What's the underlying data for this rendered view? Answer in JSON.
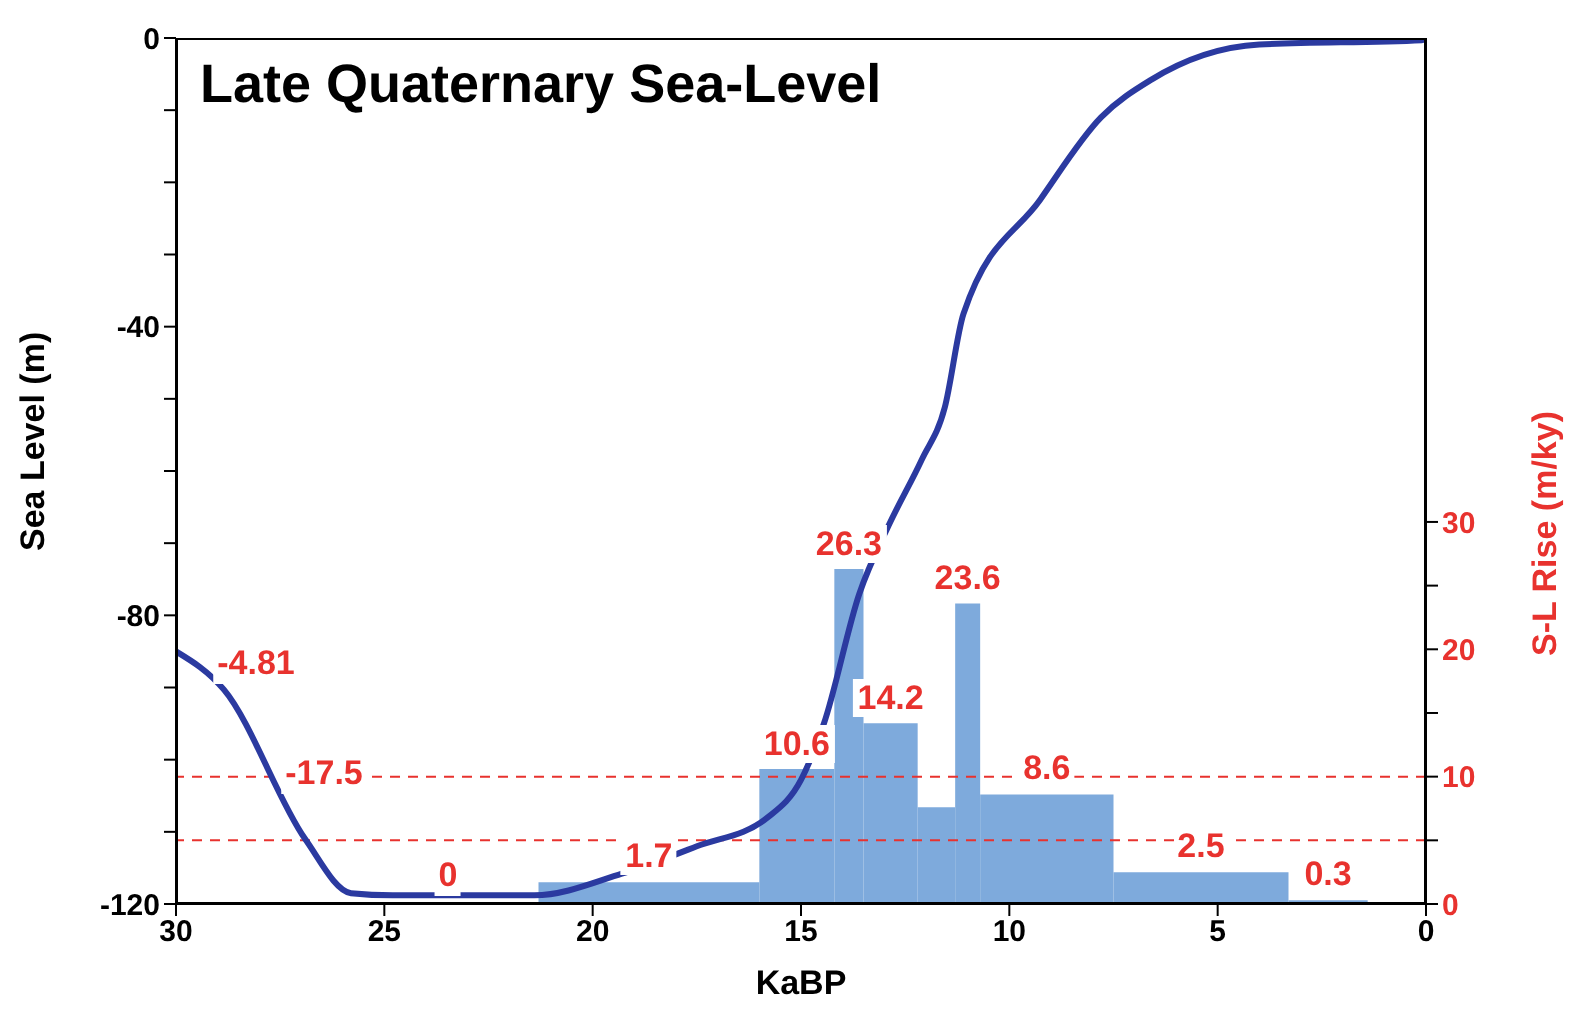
{
  "chart_data": {
    "type": "histogram",
    "title": "Late Quaternary Sea-Level",
    "xlabel": "KaBP",
    "ylabel": "Sea Level (m)",
    "y2label": "S-L Rise (m/ky)",
    "xlim": [
      30,
      0
    ],
    "xticks": [
      30,
      25,
      20,
      15,
      10,
      5,
      0
    ],
    "ylim": [
      -120,
      0
    ],
    "yticks": [
      -120,
      {
        "value": -110,
        "label": null
      },
      {
        "value": -100,
        "label": null
      },
      {
        "value": -90,
        "label": null
      },
      -80,
      {
        "value": -70,
        "label": null
      },
      {
        "value": -60,
        "label": null
      },
      {
        "value": -50,
        "label": null
      },
      -40,
      {
        "value": -30,
        "label": null
      },
      {
        "value": -20,
        "label": null
      },
      {
        "value": -10,
        "label": null
      },
      0
    ],
    "y2lim": [
      0,
      68
    ],
    "y2ticks": [
      0,
      {
        "value": 5,
        "label": null
      },
      10,
      {
        "value": 15,
        "label": null
      },
      20,
      {
        "value": 25,
        "label": null
      },
      30
    ],
    "series": [
      {
        "axis": "y2",
        "color": "#7eaadc",
        "bins": [
          21.3,
          16,
          14.2,
          13.5,
          12.2,
          11.3,
          10.7,
          7.5,
          3.3,
          1.4
        ],
        "values": [
          1.7,
          10.6,
          26.3,
          14.2,
          7.6,
          23.6,
          8.6,
          2.5,
          0.3
        ],
        "value_labels": [
          "1.7",
          "10.6",
          "26.3",
          "14.2",
          null,
          "23.6",
          "8.6",
          "2.5",
          "0.3"
        ]
      },
      {
        "type": "line",
        "axis": "y",
        "color": "#2b3aa0",
        "x": [
          30,
          28.85,
          26.9,
          25.8,
          24.8,
          21.4,
          19.3,
          17.5,
          15.8,
          15,
          14.45,
          13.6,
          12.9,
          12.1,
          11.55,
          11.1,
          9.26,
          7.8,
          6.6,
          4,
          0.1,
          0
        ],
        "values": [
          -85,
          -90.3,
          -111,
          -118.5,
          -118.8,
          -118.8,
          -115.8,
          -112,
          -108,
          -102.8,
          -95,
          -77,
          -67.6,
          -58.4,
          -51.2,
          -38.2,
          -22.4,
          -11,
          -5.8,
          -0.9,
          -0.3,
          0
        ]
      }
    ],
    "ref_lines": [
      {
        "axis": "y2",
        "value": 10,
        "color": "#e8322e",
        "line_style": "dashed"
      },
      {
        "axis": "y2",
        "value": 5,
        "color": "#e8322e",
        "line_style": "dashed"
      }
    ],
    "annotations": [
      "-4.81",
      "-17.5",
      "0"
    ]
  }
}
